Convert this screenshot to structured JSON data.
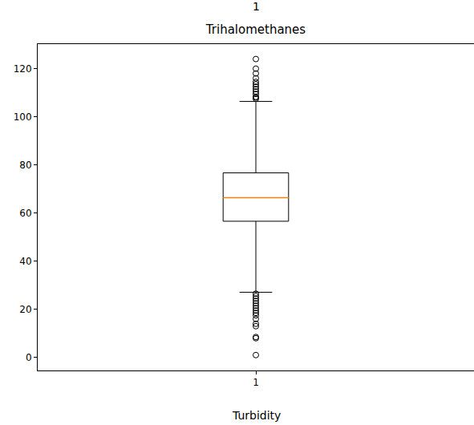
{
  "chart_data": {
    "type": "box",
    "title": "Trihalomethanes",
    "box": {
      "x": 1,
      "q1": 56.6,
      "median": 66.4,
      "q3": 76.7,
      "whisker_low": 27.1,
      "whisker_high": 106.4
    },
    "outliers": [
      107.5,
      108.0,
      108.3,
      109.5,
      110.5,
      111.5,
      112.5,
      113.5,
      114.5,
      116.0,
      118.0,
      120.0,
      124.0,
      26.5,
      25.5,
      24.5,
      23.5,
      22.5,
      21.5,
      20.5,
      19.5,
      18.5,
      17.5,
      16.0,
      14.0,
      13.0,
      8.5,
      8.0,
      1.0
    ],
    "xlim": [
      0.5,
      1.5
    ],
    "xticks": [
      1
    ],
    "ylim": [
      -5.4,
      130.2
    ],
    "yticks": [
      0,
      20,
      40,
      60,
      80,
      100,
      120
    ],
    "grid": false,
    "annotations": [
      {
        "text": "1"
      },
      {
        "text": "Turbidity"
      }
    ]
  }
}
